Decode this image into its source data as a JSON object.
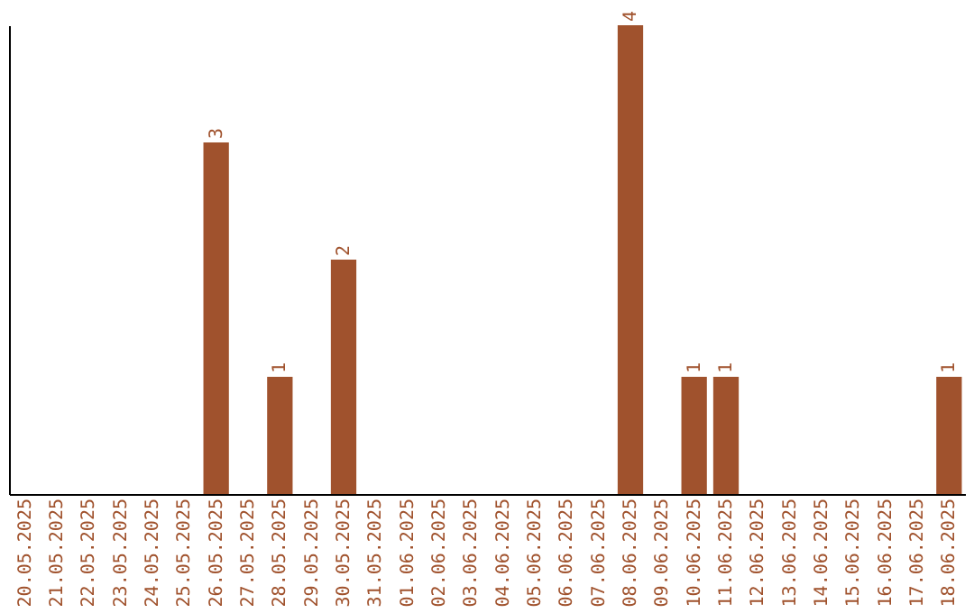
{
  "chart_data": {
    "type": "bar",
    "categories": [
      "20.05.2025",
      "21.05.2025",
      "22.05.2025",
      "23.05.2025",
      "24.05.2025",
      "25.05.2025",
      "26.05.2025",
      "27.05.2025",
      "28.05.2025",
      "29.05.2025",
      "30.05.2025",
      "31.05.2025",
      "01.06.2025",
      "02.06.2025",
      "03.06.2025",
      "04.06.2025",
      "05.06.2025",
      "06.06.2025",
      "07.06.2025",
      "08.06.2025",
      "09.06.2025",
      "10.06.2025",
      "11.06.2025",
      "12.06.2025",
      "13.06.2025",
      "14.06.2025",
      "15.06.2025",
      "16.06.2025",
      "17.06.2025",
      "18.06.2025"
    ],
    "values": [
      0,
      0,
      0,
      0,
      0,
      0,
      3,
      0,
      1,
      0,
      2,
      0,
      0,
      0,
      0,
      0,
      0,
      0,
      0,
      4,
      0,
      1,
      1,
      0,
      0,
      0,
      0,
      0,
      0,
      1
    ],
    "value_labels": [
      null,
      null,
      null,
      null,
      null,
      null,
      "3",
      null,
      "1",
      null,
      "2",
      null,
      null,
      null,
      null,
      null,
      null,
      null,
      null,
      "4",
      null,
      "1",
      "1",
      null,
      null,
      null,
      null,
      null,
      null,
      "1"
    ],
    "color": "#a0522d",
    "tick_labels": "x",
    "grid": false
  }
}
